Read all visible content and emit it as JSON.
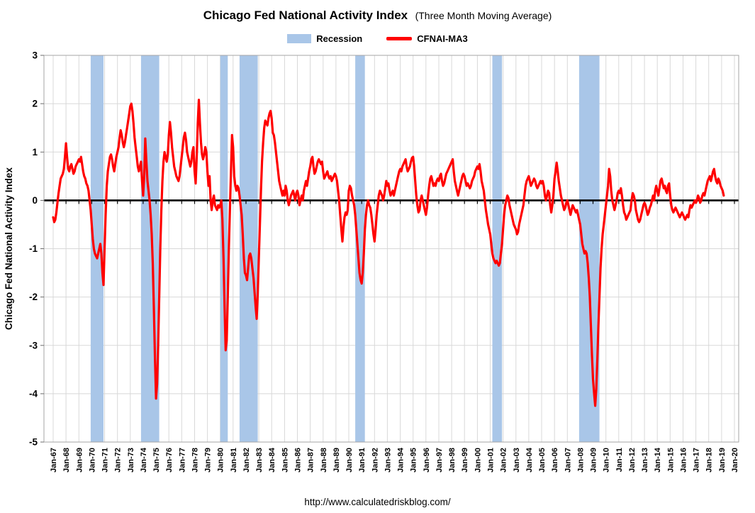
{
  "title": {
    "main": "Chicago Fed National Activity Index",
    "sub": "(Three Month Moving Average)"
  },
  "legend": {
    "recession_label": "Recession",
    "series_label": "CFNAI-MA3"
  },
  "footer": {
    "url": "http://www.calculatedriskblog.com/"
  },
  "colors": {
    "line": "#ff0000",
    "recession_band": "#a9c6e8",
    "gridline": "#d8d8d8",
    "axis": "#a6a6a6",
    "zero_line": "#000000",
    "text": "#000000"
  },
  "chart_data": {
    "type": "line",
    "title": "Chicago Fed National Activity Index (Three Month Moving Average)",
    "xlabel": "",
    "ylabel": "Chicago Fed National Activity Index",
    "ylim": [
      -5,
      3
    ],
    "yticks": [
      3,
      2,
      1,
      0,
      -1,
      -2,
      -3,
      -4,
      -5
    ],
    "grid": true,
    "legend_position": "top",
    "x_start_year": 1967,
    "x_tick_labels": [
      "Jan-67",
      "Jan-68",
      "Jan-69",
      "Jan-70",
      "Jan-71",
      "Jan-72",
      "Jan-73",
      "Jan-74",
      "Jan-75",
      "Jan-76",
      "Jan-77",
      "Jan-78",
      "Jan-79",
      "Jan-80",
      "Jan-81",
      "Jan-82",
      "Jan-83",
      "Jan-84",
      "Jan-85",
      "Jan-86",
      "Jan-87",
      "Jan-88",
      "Jan-89",
      "Jan-90",
      "Jan-91",
      "Jan-92",
      "Jan-93",
      "Jan-94",
      "Jan-95",
      "Jan-96",
      "Jan-97",
      "Jan-98",
      "Jan-99",
      "Jan-00",
      "Jan-01",
      "Jan-02",
      "Jan-03",
      "Jan-04",
      "Jan-05",
      "Jan-06",
      "Jan-07",
      "Jan-08",
      "Jan-09",
      "Jan-10",
      "Jan-11",
      "Jan-12",
      "Jan-13",
      "Jan-14",
      "Jan-15",
      "Jan-16",
      "Jan-17",
      "Jan-18",
      "Jan-19",
      "Jan-20"
    ],
    "recessions": [
      {
        "start": "1969-12",
        "end": "1970-11"
      },
      {
        "start": "1973-11",
        "end": "1975-03"
      },
      {
        "start": "1980-01",
        "end": "1980-07"
      },
      {
        "start": "1981-07",
        "end": "1982-11"
      },
      {
        "start": "1990-07",
        "end": "1991-03"
      },
      {
        "start": "2001-03",
        "end": "2001-11"
      },
      {
        "start": "2007-12",
        "end": "2009-06"
      }
    ],
    "series": [
      {
        "name": "CFNAI-MA3",
        "start": "1967-01",
        "monthly_values_by_year": [
          [
            -0.35,
            -0.45,
            -0.4,
            -0.25,
            -0.05,
            0.15,
            0.3,
            0.45,
            0.5,
            0.55,
            0.65,
            0.9
          ],
          [
            1.18,
            0.9,
            0.65,
            0.6,
            0.7,
            0.75,
            0.65,
            0.55,
            0.6,
            0.7,
            0.75,
            0.8
          ],
          [
            0.85,
            0.8,
            0.9,
            0.75,
            0.6,
            0.5,
            0.45,
            0.35,
            0.3,
            0.2,
            0.0,
            -0.2
          ],
          [
            -0.5,
            -0.8,
            -1.0,
            -1.1,
            -1.15,
            -1.2,
            -1.1,
            -1.0,
            -0.9,
            -1.1,
            -1.5,
            -1.75
          ],
          [
            -1.0,
            -0.3,
            0.3,
            0.6,
            0.75,
            0.9,
            0.95,
            0.85,
            0.7,
            0.6,
            0.75,
            0.9
          ],
          [
            1.0,
            1.1,
            1.3,
            1.45,
            1.35,
            1.2,
            1.1,
            1.2,
            1.35,
            1.5,
            1.65,
            1.8
          ],
          [
            1.95,
            2.0,
            1.85,
            1.6,
            1.3,
            1.1,
            0.9,
            0.7,
            0.6,
            0.7,
            0.8,
            0.4
          ],
          [
            0.1,
            0.5,
            1.28,
            0.8,
            0.4,
            0.2,
            0.0,
            -0.3,
            -0.7,
            -1.3,
            -2.2,
            -3.2
          ],
          [
            -4.1,
            -3.8,
            -3.0,
            -2.0,
            -1.0,
            -0.2,
            0.4,
            0.8,
            1.0,
            0.9,
            0.8,
            0.95
          ],
          [
            1.35,
            1.62,
            1.4,
            1.1,
            0.9,
            0.7,
            0.6,
            0.5,
            0.45,
            0.4,
            0.5,
            0.7
          ],
          [
            0.9,
            1.1,
            1.3,
            1.4,
            1.25,
            1.0,
            0.9,
            0.8,
            0.7,
            0.8,
            1.0,
            1.1
          ],
          [
            0.6,
            0.35,
            0.9,
            1.6,
            2.08,
            1.6,
            1.2,
            0.95,
            0.85,
            0.95,
            1.1,
            1.0
          ],
          [
            0.6,
            0.3,
            0.5,
            0.0,
            -0.2,
            0.0,
            0.1,
            -0.1,
            -0.15,
            -0.2,
            -0.1,
            -0.15
          ],
          [
            -0.1,
            0.0,
            -0.4,
            -1.2,
            -2.2,
            -3.1,
            -2.9,
            -2.0,
            -1.0,
            -0.2,
            0.6,
            1.35
          ],
          [
            1.1,
            0.5,
            0.3,
            0.2,
            0.3,
            0.25,
            0.1,
            -0.1,
            -0.3,
            -0.7,
            -1.2,
            -1.5
          ],
          [
            -1.55,
            -1.65,
            -1.4,
            -1.15,
            -1.1,
            -1.2,
            -1.4,
            -1.6,
            -1.9,
            -2.2,
            -2.45,
            -1.9
          ],
          [
            -1.2,
            -0.5,
            0.2,
            0.8,
            1.2,
            1.5,
            1.65,
            1.6,
            1.55,
            1.7,
            1.8,
            1.85
          ],
          [
            1.7,
            1.4,
            1.35,
            1.2,
            1.0,
            0.8,
            0.6,
            0.4,
            0.3,
            0.2,
            0.1,
            0.2
          ],
          [
            0.1,
            0.3,
            0.2,
            0.0,
            -0.1,
            0.0,
            0.1,
            0.15,
            0.2,
            0.1,
            0.0,
            0.15
          ],
          [
            0.2,
            0.1,
            -0.1,
            0.0,
            0.1,
            0.0,
            0.2,
            0.3,
            0.4,
            0.3,
            0.45,
            0.6
          ],
          [
            0.7,
            0.85,
            0.9,
            0.7,
            0.55,
            0.6,
            0.7,
            0.8,
            0.85,
            0.8,
            0.75,
            0.8
          ],
          [
            0.6,
            0.45,
            0.5,
            0.55,
            0.6,
            0.5,
            0.45,
            0.5,
            0.4,
            0.45,
            0.5,
            0.55
          ],
          [
            0.5,
            0.4,
            0.2,
            0.0,
            -0.3,
            -0.6,
            -0.85,
            -0.55,
            -0.35,
            -0.25,
            -0.3,
            -0.2
          ],
          [
            0.2,
            0.3,
            0.25,
            0.1,
            0.0,
            -0.1,
            -0.3,
            -0.6,
            -0.9,
            -1.2,
            -1.5,
            -1.65
          ],
          [
            -1.72,
            -1.5,
            -1.1,
            -0.6,
            -0.3,
            -0.1,
            0.0,
            -0.1,
            -0.15,
            -0.3,
            -0.5,
            -0.7
          ],
          [
            -0.85,
            -0.6,
            -0.3,
            -0.1,
            0.1,
            0.2,
            0.15,
            0.1,
            0.0,
            0.1,
            0.25,
            0.4
          ],
          [
            0.3,
            0.35,
            0.2,
            0.1,
            0.15,
            0.2,
            0.1,
            0.2,
            0.3,
            0.4,
            0.5,
            0.6
          ],
          [
            0.65,
            0.6,
            0.7,
            0.75,
            0.8,
            0.85,
            0.7,
            0.6,
            0.65,
            0.7,
            0.8,
            0.88
          ],
          [
            0.9,
            0.7,
            0.4,
            0.1,
            -0.1,
            -0.25,
            -0.2,
            0.0,
            0.1,
            0.0,
            -0.1,
            -0.2
          ],
          [
            -0.3,
            -0.15,
            0.1,
            0.3,
            0.45,
            0.5,
            0.4,
            0.3,
            0.35,
            0.3,
            0.4,
            0.45
          ],
          [
            0.4,
            0.5,
            0.55,
            0.4,
            0.3,
            0.35,
            0.45,
            0.55,
            0.6,
            0.65,
            0.7,
            0.75
          ],
          [
            0.8,
            0.85,
            0.6,
            0.4,
            0.3,
            0.2,
            0.1,
            0.2,
            0.3,
            0.4,
            0.5,
            0.55
          ],
          [
            0.5,
            0.4,
            0.3,
            0.35,
            0.3,
            0.25,
            0.3,
            0.4,
            0.45,
            0.5,
            0.6,
            0.65
          ],
          [
            0.7,
            0.65,
            0.75,
            0.6,
            0.4,
            0.3,
            0.2,
            0.0,
            -0.2,
            -0.35,
            -0.5,
            -0.6
          ],
          [
            -0.7,
            -0.9,
            -1.1,
            -1.2,
            -1.25,
            -1.3,
            -1.25,
            -1.3,
            -1.35,
            -1.3,
            -1.1,
            -0.9
          ],
          [
            -0.6,
            -0.3,
            -0.1,
            0.0,
            0.1,
            0.05,
            -0.1,
            -0.2,
            -0.3,
            -0.4,
            -0.5,
            -0.55
          ],
          [
            -0.6,
            -0.7,
            -0.65,
            -0.5,
            -0.4,
            -0.3,
            -0.2,
            -0.1,
            0.1,
            0.3,
            0.4,
            0.45
          ],
          [
            0.5,
            0.4,
            0.3,
            0.35,
            0.4,
            0.45,
            0.4,
            0.3,
            0.25,
            0.3,
            0.35,
            0.4
          ],
          [
            0.35,
            0.4,
            0.3,
            0.1,
            0.0,
            0.1,
            0.2,
            0.15,
            -0.1,
            -0.25,
            -0.1,
            0.1
          ],
          [
            0.45,
            0.6,
            0.78,
            0.6,
            0.4,
            0.25,
            0.1,
            0.0,
            -0.1,
            -0.2,
            -0.15,
            -0.05
          ],
          [
            0.0,
            -0.1,
            -0.2,
            -0.3,
            -0.2,
            -0.1,
            -0.15,
            -0.2,
            -0.25,
            -0.2,
            -0.3,
            -0.4
          ],
          [
            -0.5,
            -0.7,
            -0.9,
            -1.0,
            -1.1,
            -1.05,
            -1.1,
            -1.3,
            -1.6,
            -2.0,
            -2.6,
            -3.2
          ],
          [
            -3.7,
            -4.0,
            -4.25,
            -3.9,
            -3.3,
            -2.6,
            -2.0,
            -1.4,
            -1.0,
            -0.7,
            -0.5,
            -0.3
          ],
          [
            -0.1,
            0.1,
            0.3,
            0.65,
            0.5,
            0.2,
            0.0,
            -0.1,
            -0.2,
            -0.1,
            0.0,
            0.15
          ],
          [
            0.2,
            0.15,
            0.25,
            0.1,
            -0.1,
            -0.25,
            -0.3,
            -0.4,
            -0.35,
            -0.3,
            -0.25,
            -0.2
          ],
          [
            0.0,
            0.15,
            0.1,
            0.0,
            -0.2,
            -0.3,
            -0.4,
            -0.45,
            -0.4,
            -0.3,
            -0.2,
            -0.1
          ],
          [
            -0.05,
            -0.1,
            -0.2,
            -0.3,
            -0.25,
            -0.15,
            -0.1,
            0.0,
            0.1,
            0.0,
            0.2,
            0.3
          ],
          [
            0.2,
            0.1,
            0.25,
            0.4,
            0.45,
            0.35,
            0.25,
            0.3,
            0.2,
            0.15,
            0.3,
            0.35
          ],
          [
            0.1,
            -0.1,
            -0.2,
            -0.25,
            -0.2,
            -0.15,
            -0.2,
            -0.25,
            -0.3,
            -0.35,
            -0.3,
            -0.25
          ],
          [
            -0.3,
            -0.35,
            -0.4,
            -0.35,
            -0.3,
            -0.35,
            -0.2,
            -0.1,
            -0.15,
            -0.1,
            -0.05,
            0.0
          ],
          [
            -0.05,
            0.0,
            0.1,
            0.05,
            -0.05,
            0.0,
            0.1,
            0.15,
            0.1,
            0.2,
            0.3,
            0.4
          ],
          [
            0.45,
            0.5,
            0.4,
            0.5,
            0.6,
            0.65,
            0.5,
            0.4,
            0.35,
            0.45,
            0.4,
            0.3
          ],
          [
            0.25,
            0.2,
            0.1
          ]
        ]
      }
    ]
  }
}
